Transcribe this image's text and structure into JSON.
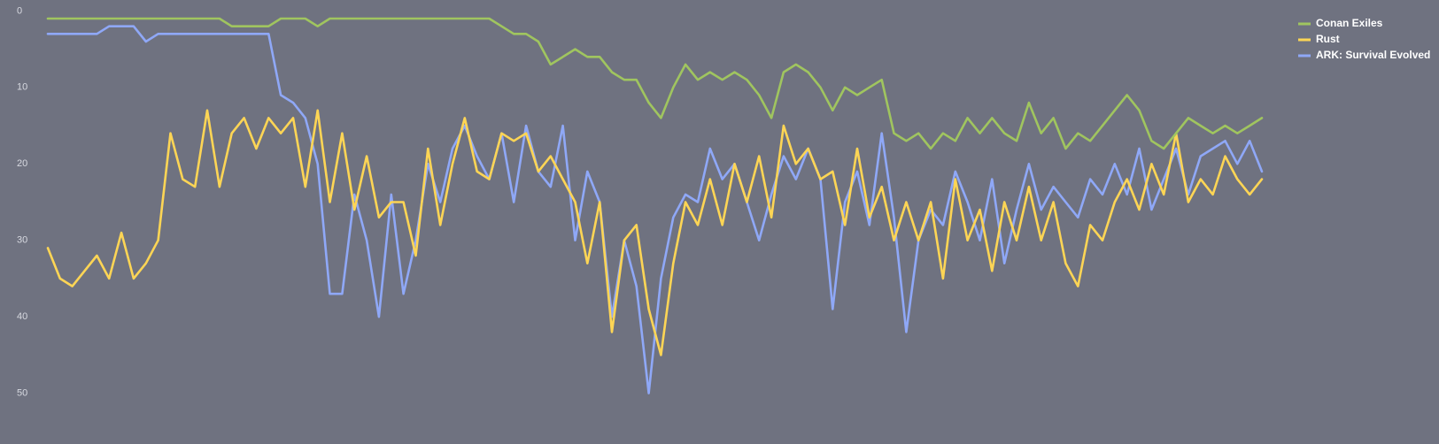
{
  "chart_data": {
    "type": "line",
    "ylim": [
      0,
      50
    ],
    "y_inverted": true,
    "yticks": [
      0,
      10,
      20,
      30,
      40,
      50
    ],
    "legend_position": "top-right",
    "series": [
      {
        "name": "Conan Exiles",
        "color": "#a0c55f",
        "values": [
          1,
          1,
          1,
          1,
          1,
          1,
          1,
          1,
          1,
          1,
          1,
          1,
          1,
          1,
          1,
          2,
          2,
          2,
          2,
          1,
          1,
          1,
          2,
          1,
          1,
          1,
          1,
          1,
          1,
          1,
          1,
          1,
          1,
          1,
          1,
          1,
          1,
          2,
          3,
          3,
          4,
          7,
          6,
          5,
          6,
          6,
          8,
          9,
          9,
          12,
          14,
          10,
          7,
          9,
          8,
          9,
          8,
          9,
          11,
          14,
          8,
          7,
          8,
          10,
          13,
          10,
          11,
          10,
          9,
          16,
          17,
          16,
          18,
          16,
          17,
          14,
          16,
          14,
          16,
          17,
          12,
          16,
          14,
          18,
          16,
          17,
          15,
          13,
          11,
          13,
          17,
          18,
          16,
          14,
          15,
          16,
          15,
          16,
          15,
          14
        ]
      },
      {
        "name": "Rust",
        "color": "#fdd555",
        "values": [
          31,
          35,
          36,
          34,
          32,
          35,
          29,
          35,
          33,
          30,
          16,
          22,
          23,
          13,
          23,
          16,
          14,
          18,
          14,
          16,
          14,
          23,
          13,
          25,
          16,
          26,
          19,
          27,
          25,
          25,
          32,
          18,
          28,
          20,
          14,
          21,
          22,
          16,
          17,
          16,
          21,
          19,
          22,
          25,
          33,
          25,
          42,
          30,
          28,
          39,
          45,
          33,
          25,
          28,
          22,
          28,
          20,
          25,
          19,
          27,
          15,
          20,
          18,
          22,
          21,
          28,
          18,
          27,
          23,
          30,
          25,
          30,
          25,
          35,
          22,
          30,
          26,
          34,
          25,
          30,
          23,
          30,
          25,
          33,
          36,
          28,
          30,
          25,
          22,
          26,
          20,
          24,
          16,
          25,
          22,
          24,
          19,
          22,
          24,
          22
        ]
      },
      {
        "name": "ARK: Survival Evolved",
        "color": "#8fa8f7",
        "values": [
          3,
          3,
          3,
          3,
          3,
          2,
          2,
          2,
          4,
          3,
          3,
          3,
          3,
          3,
          3,
          3,
          3,
          3,
          3,
          11,
          12,
          14,
          20,
          37,
          37,
          24,
          30,
          40,
          24,
          37,
          30,
          20,
          25,
          18,
          15,
          19,
          22,
          16,
          25,
          15,
          21,
          23,
          15,
          30,
          21,
          25,
          40,
          30,
          36,
          50,
          35,
          27,
          24,
          25,
          18,
          22,
          20,
          25,
          30,
          24,
          19,
          22,
          18,
          22,
          39,
          25,
          21,
          28,
          16,
          27,
          42,
          30,
          26,
          28,
          21,
          25,
          30,
          22,
          33,
          26,
          20,
          26,
          23,
          25,
          27,
          22,
          24,
          20,
          24,
          18,
          26,
          22,
          18,
          24,
          19,
          18,
          17,
          20,
          17,
          21
        ]
      }
    ]
  }
}
